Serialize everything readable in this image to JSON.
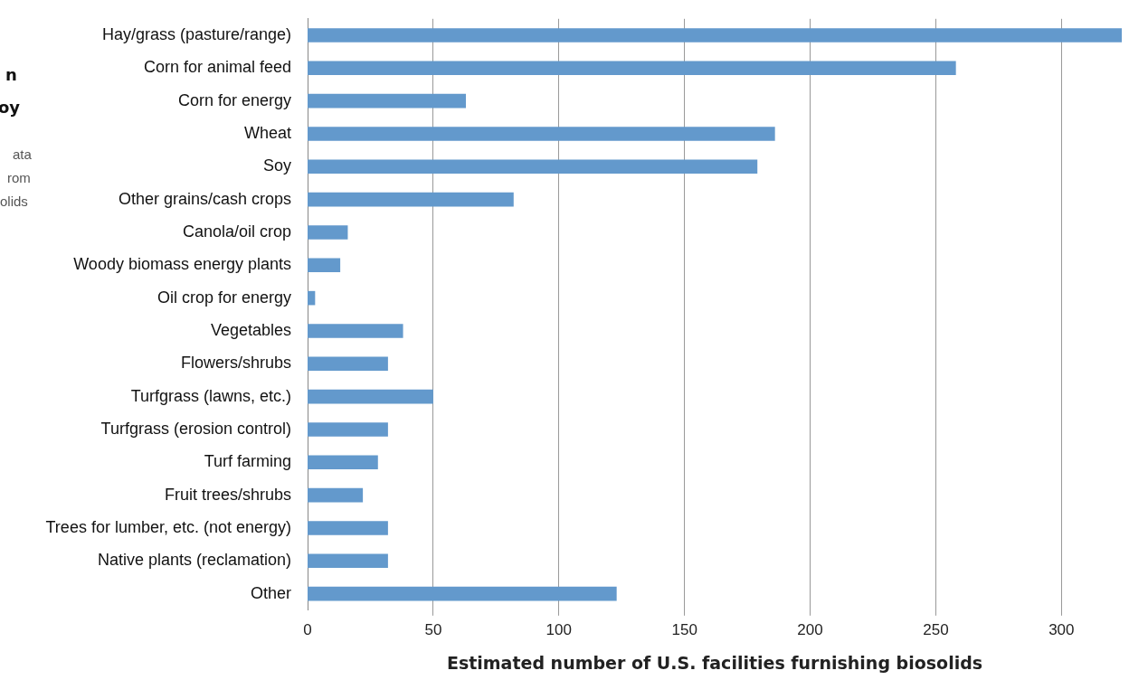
{
  "chart_data": {
    "type": "bar",
    "orientation": "horizontal",
    "xlabel": "Estimated number of U.S. facilities furnishing biosolids",
    "categories": [
      "Hay/grass (pasture/range)",
      "Corn for animal feed",
      "Corn for energy",
      "Wheat",
      "Soy",
      "Other grains/cash crops",
      "Canola/oil crop",
      "Woody biomass energy plants",
      "Oil crop for energy",
      "Vegetables",
      "Flowers/shrubs",
      "Turfgrass (lawns, etc.)",
      "Turfgrass (erosion control)",
      "Turf farming",
      "Fruit trees/shrubs",
      "Trees for lumber, etc. (not energy)",
      "Native plants (reclamation)",
      "Other"
    ],
    "values": [
      324,
      258,
      63,
      186,
      179,
      82,
      16,
      13,
      3,
      38,
      32,
      50,
      32,
      28,
      22,
      32,
      32,
      123
    ],
    "color": "#6399cc",
    "xlim": [
      0,
      324
    ],
    "xticks": [
      0,
      50,
      100,
      150,
      200,
      250,
      300
    ],
    "grid": "x",
    "annotations": [
      "n",
      "oy",
      "ata",
      "rom",
      "olids"
    ]
  }
}
